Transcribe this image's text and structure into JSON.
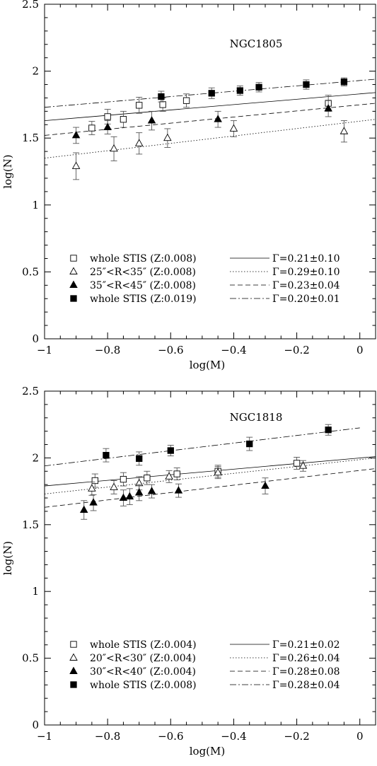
{
  "chart_data": [
    {
      "type": "scatter",
      "title": "NGC1805",
      "xlabel": "log(M)",
      "ylabel": "log(N)",
      "xlim": [
        -1.0,
        0.05
      ],
      "ylim": [
        0,
        2.5
      ],
      "x_ticks": [
        "−1",
        "−0.8",
        "−0.6",
        "−0.4",
        "−0.2",
        "0"
      ],
      "y_ticks": [
        "0",
        "0.5",
        "1",
        "1.5",
        "2",
        "2.5"
      ],
      "legend_position": "bottom",
      "series": [
        {
          "name": "whole STIS (Z:0.008)",
          "marker": "open-square",
          "points": [
            {
              "x": -0.85,
              "y": 1.575,
              "err": 0.05
            },
            {
              "x": -0.8,
              "y": 1.66,
              "err": 0.055
            },
            {
              "x": -0.75,
              "y": 1.64,
              "err": 0.06
            },
            {
              "x": -0.7,
              "y": 1.745,
              "err": 0.06
            },
            {
              "x": -0.625,
              "y": 1.75,
              "err": 0.05
            },
            {
              "x": -0.55,
              "y": 1.78,
              "err": 0.05
            },
            {
              "x": -0.1,
              "y": 1.76,
              "err": 0.06
            }
          ]
        },
        {
          "name": "25″<R<35″ (Z:0.008)",
          "marker": "open-triangle",
          "points": [
            {
              "x": -0.9,
              "y": 1.29,
              "err": 0.1
            },
            {
              "x": -0.78,
              "y": 1.42,
              "err": 0.09
            },
            {
              "x": -0.7,
              "y": 1.46,
              "err": 0.08
            },
            {
              "x": -0.61,
              "y": 1.5,
              "err": 0.07
            },
            {
              "x": -0.4,
              "y": 1.57,
              "err": 0.06
            },
            {
              "x": -0.05,
              "y": 1.55,
              "err": 0.08
            }
          ]
        },
        {
          "name": "35″<R<45″ (Z:0.008)",
          "marker": "filled-triangle",
          "points": [
            {
              "x": -0.9,
              "y": 1.52,
              "err": 0.06
            },
            {
              "x": -0.8,
              "y": 1.58,
              "err": 0.05
            },
            {
              "x": -0.66,
              "y": 1.63,
              "err": 0.07
            },
            {
              "x": -0.45,
              "y": 1.64,
              "err": 0.06
            },
            {
              "x": -0.1,
              "y": 1.72,
              "err": 0.06
            }
          ]
        },
        {
          "name": "whole STIS (Z:0.019)",
          "marker": "filled-square",
          "points": [
            {
              "x": -0.63,
              "y": 1.81,
              "err": 0.04
            },
            {
              "x": -0.47,
              "y": 1.835,
              "err": 0.04
            },
            {
              "x": -0.38,
              "y": 1.855,
              "err": 0.035
            },
            {
              "x": -0.32,
              "y": 1.88,
              "err": 0.035
            },
            {
              "x": -0.17,
              "y": 1.9,
              "err": 0.035
            },
            {
              "x": -0.05,
              "y": 1.92,
              "err": 0.03
            }
          ]
        }
      ],
      "fits": [
        {
          "label": "Γ=0.21±0.10",
          "style": "solid",
          "x": [
            -1.0,
            0.05
          ],
          "y": [
            1.63,
            1.84
          ]
        },
        {
          "label": "Γ=0.29±0.10",
          "style": "dotted",
          "x": [
            -1.0,
            0.05
          ],
          "y": [
            1.35,
            1.64
          ]
        },
        {
          "label": "Γ=0.23±0.04",
          "style": "dashed",
          "x": [
            -1.0,
            0.05
          ],
          "y": [
            1.52,
            1.76
          ]
        },
        {
          "label": "Γ=0.20±0.01",
          "style": "dashdot",
          "x": [
            -1.0,
            0.05
          ],
          "y": [
            1.73,
            1.94
          ]
        }
      ]
    },
    {
      "type": "scatter",
      "title": "NGC1818",
      "xlabel": "log(M)",
      "ylabel": "log(N)",
      "xlim": [
        -1.0,
        0.05
      ],
      "ylim": [
        0,
        2.5
      ],
      "x_ticks": [
        "−1",
        "−0.8",
        "−0.6",
        "−0.4",
        "−0.2",
        "0"
      ],
      "y_ticks": [
        "0",
        "0.5",
        "1",
        "1.5",
        "2",
        "2.5"
      ],
      "legend_position": "bottom",
      "series": [
        {
          "name": "whole STIS (Z:0.004)",
          "marker": "open-square",
          "points": [
            {
              "x": -0.84,
              "y": 1.83,
              "err": 0.05
            },
            {
              "x": -0.75,
              "y": 1.84,
              "err": 0.05
            },
            {
              "x": -0.675,
              "y": 1.85,
              "err": 0.05
            },
            {
              "x": -0.58,
              "y": 1.88,
              "err": 0.045
            },
            {
              "x": -0.45,
              "y": 1.9,
              "err": 0.045
            },
            {
              "x": -0.2,
              "y": 1.96,
              "err": 0.045
            }
          ]
        },
        {
          "name": "20″<R<30″ (Z:0.004)",
          "marker": "open-triangle",
          "points": [
            {
              "x": -0.85,
              "y": 1.77,
              "err": 0.05
            },
            {
              "x": -0.78,
              "y": 1.78,
              "err": 0.05
            },
            {
              "x": -0.7,
              "y": 1.81,
              "err": 0.05
            },
            {
              "x": -0.605,
              "y": 1.86,
              "err": 0.045
            },
            {
              "x": -0.45,
              "y": 1.89,
              "err": 0.045
            },
            {
              "x": -0.18,
              "y": 1.94,
              "err": 0.04
            }
          ]
        },
        {
          "name": "30″<R<40″ (Z:0.004)",
          "marker": "filled-triangle",
          "points": [
            {
              "x": -0.875,
              "y": 1.61,
              "err": 0.07
            },
            {
              "x": -0.845,
              "y": 1.665,
              "err": 0.06
            },
            {
              "x": -0.75,
              "y": 1.7,
              "err": 0.06
            },
            {
              "x": -0.73,
              "y": 1.71,
              "err": 0.06
            },
            {
              "x": -0.7,
              "y": 1.74,
              "err": 0.06
            },
            {
              "x": -0.66,
              "y": 1.75,
              "err": 0.05
            },
            {
              "x": -0.575,
              "y": 1.755,
              "err": 0.05
            },
            {
              "x": -0.3,
              "y": 1.79,
              "err": 0.06
            }
          ]
        },
        {
          "name": "whole STIS (Z:0.008)",
          "marker": "filled-square",
          "points": [
            {
              "x": -0.805,
              "y": 2.02,
              "err": 0.05
            },
            {
              "x": -0.7,
              "y": 1.995,
              "err": 0.05
            },
            {
              "x": -0.6,
              "y": 2.055,
              "err": 0.04
            },
            {
              "x": -0.35,
              "y": 2.105,
              "err": 0.05
            },
            {
              "x": -0.1,
              "y": 2.21,
              "err": 0.04
            }
          ]
        }
      ],
      "fits": [
        {
          "label": "Γ=0.21±0.02",
          "style": "solid",
          "x": [
            -1.0,
            0.05
          ],
          "y": [
            1.79,
            2.01
          ]
        },
        {
          "label": "Γ=0.26±0.04",
          "style": "dotted",
          "x": [
            -1.0,
            0.05
          ],
          "y": [
            1.73,
            2.0
          ]
        },
        {
          "label": "Γ=0.28±0.08",
          "style": "dashed",
          "x": [
            -1.0,
            0.05
          ],
          "y": [
            1.63,
            1.92
          ]
        },
        {
          "label": "Γ=0.28±0.04",
          "style": "dashdot",
          "x": [
            -1.0,
            0.0
          ],
          "y": [
            1.94,
            2.225
          ]
        }
      ]
    }
  ]
}
